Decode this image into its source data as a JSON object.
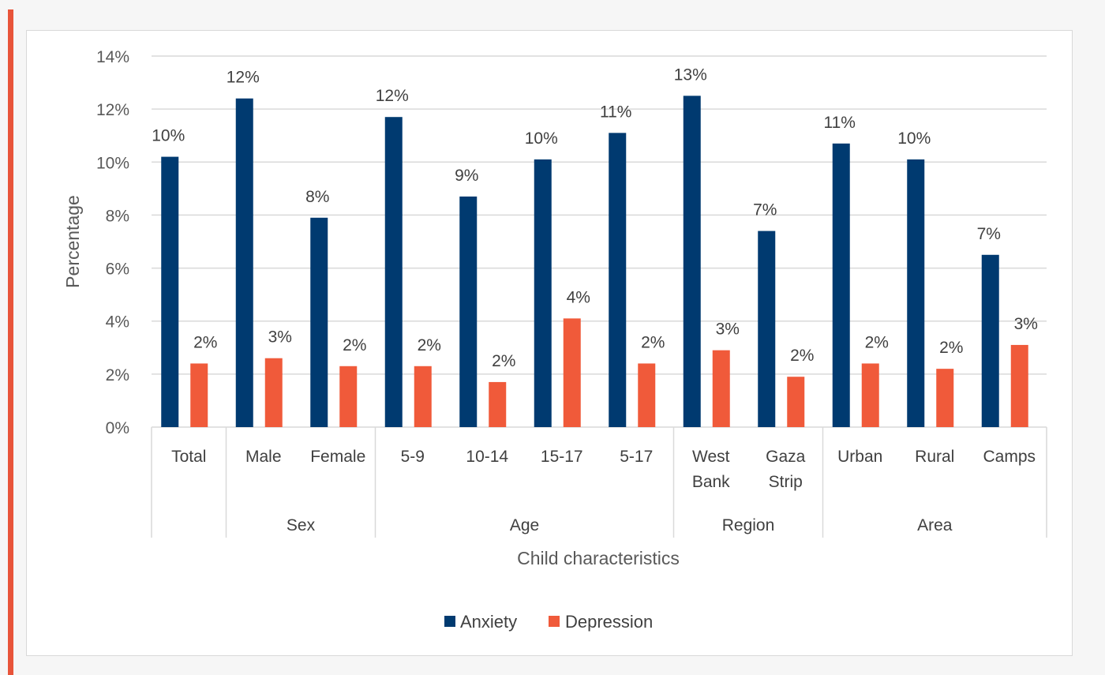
{
  "colors": {
    "accent_bar": "#e8543a",
    "anxiety": "#003a70",
    "depression": "#f05a3a",
    "gridline": "#d9d9d9"
  },
  "chart_data": {
    "type": "bar",
    "xlabel": "Child characteristics",
    "ylabel": "Percentage",
    "ylim": [
      0,
      14
    ],
    "yticks": [
      0,
      2,
      4,
      6,
      8,
      10,
      12,
      14
    ],
    "ytick_labels": [
      "0%",
      "2%",
      "4%",
      "6%",
      "8%",
      "10%",
      "12%",
      "14%"
    ],
    "grid": true,
    "legend": "bottom",
    "categories": [
      "Total",
      "Male",
      "Female",
      "5-9",
      "10-14",
      "15-17",
      "5-17",
      "West Bank",
      "Gaza Strip",
      "Urban",
      "Rural",
      "Camps"
    ],
    "groups": [
      {
        "label": "",
        "start": 0,
        "count": 1
      },
      {
        "label": "Sex",
        "start": 1,
        "count": 2
      },
      {
        "label": "Age",
        "start": 3,
        "count": 4
      },
      {
        "label": "Region",
        "start": 7,
        "count": 2
      },
      {
        "label": "Area",
        "start": 9,
        "count": 3
      }
    ],
    "series": [
      {
        "name": "Anxiety",
        "values": [
          10.2,
          12.4,
          7.9,
          11.7,
          8.7,
          10.1,
          11.1,
          12.5,
          7.4,
          10.7,
          10.1,
          6.5
        ],
        "labels": [
          "10%",
          "12%",
          "8%",
          "12%",
          "9%",
          "10%",
          "11%",
          "13%",
          "7%",
          "11%",
          "10%",
          "7%"
        ]
      },
      {
        "name": "Depression",
        "values": [
          2.4,
          2.6,
          2.3,
          2.3,
          1.7,
          4.1,
          2.4,
          2.9,
          1.9,
          2.4,
          2.2,
          3.1
        ],
        "labels": [
          "2%",
          "3%",
          "2%",
          "2%",
          "2%",
          "4%",
          "2%",
          "3%",
          "2%",
          "2%",
          "2%",
          "3%"
        ]
      }
    ]
  }
}
